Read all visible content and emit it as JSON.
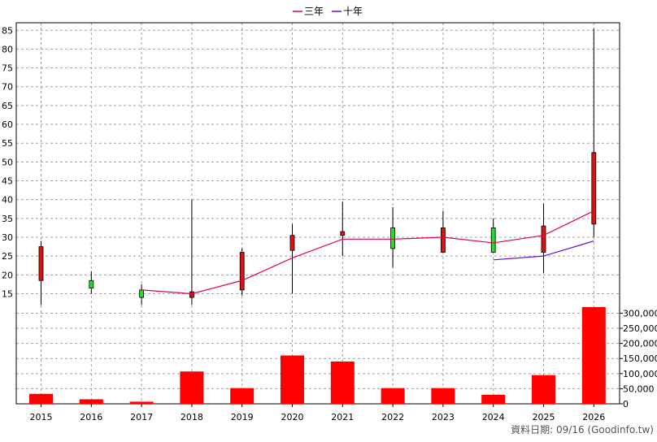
{
  "chart_data": {
    "type": "candlestick",
    "legend": [
      {
        "name": "三年",
        "color": "#e0005a"
      },
      {
        "name": "十年",
        "color": "#6a0dcc"
      }
    ],
    "categories": [
      "2015",
      "2016",
      "2017",
      "2018",
      "2019",
      "2020",
      "2021",
      "2022",
      "2023",
      "2024",
      "2025",
      "2026"
    ],
    "price_axis": {
      "ticks": [
        15,
        20,
        25,
        30,
        35,
        40,
        45,
        50,
        55,
        60,
        65,
        70,
        75,
        80,
        85
      ],
      "ylim": [
        11,
        87
      ]
    },
    "volume_axis": {
      "ticks": [
        0,
        50000,
        100000,
        150000,
        200000,
        250000,
        300000
      ],
      "tick_labels": [
        "0",
        "50,000",
        "100,000",
        "150,000",
        "200,000",
        "250,000",
        "300,000"
      ],
      "ylim": [
        0,
        320000
      ]
    },
    "candles": [
      {
        "open": 18.5,
        "close": 27.5,
        "low": 12.0,
        "high": 29.0
      },
      {
        "open": 18.5,
        "close": 16.5,
        "low": 15.0,
        "high": 21.0
      },
      {
        "open": 16.0,
        "close": 14.0,
        "low": 12.0,
        "high": 17.5
      },
      {
        "open": 14.0,
        "close": 15.5,
        "low": 12.0,
        "high": 40.0
      },
      {
        "open": 16.0,
        "close": 26.0,
        "low": 14.5,
        "high": 27.0
      },
      {
        "open": 26.5,
        "close": 30.5,
        "low": 15.0,
        "high": 33.5
      },
      {
        "open": 30.5,
        "close": 31.5,
        "low": 25.0,
        "high": 39.5
      },
      {
        "open": 32.5,
        "close": 27.0,
        "low": 22.0,
        "high": 38.0
      },
      {
        "open": 26.0,
        "close": 32.5,
        "low": 26.0,
        "high": 37.0
      },
      {
        "open": 32.5,
        "close": 26.0,
        "low": 26.0,
        "high": 35.0
      },
      {
        "open": 26.0,
        "close": 33.0,
        "low": 20.5,
        "high": 39.0
      },
      {
        "open": 33.5,
        "close": 52.5,
        "low": 30.0,
        "high": 85.5
      }
    ],
    "volume": [
      33000,
      15000,
      7000,
      107000,
      52000,
      160000,
      140000,
      52000,
      52000,
      30000,
      95000,
      320000
    ],
    "series": [
      {
        "name": "三年",
        "values": [
          null,
          null,
          16.0,
          15.0,
          18.5,
          24.5,
          29.5,
          29.5,
          30.0,
          28.5,
          30.5,
          37.0
        ]
      },
      {
        "name": "十年",
        "values": [
          null,
          null,
          null,
          null,
          null,
          null,
          null,
          null,
          null,
          24.0,
          25.0,
          29.0
        ]
      }
    ],
    "grid": true,
    "legend_position": "top-center"
  },
  "footer": {
    "note": "資料日期: 09/16  (Goodinfo.tw)"
  }
}
